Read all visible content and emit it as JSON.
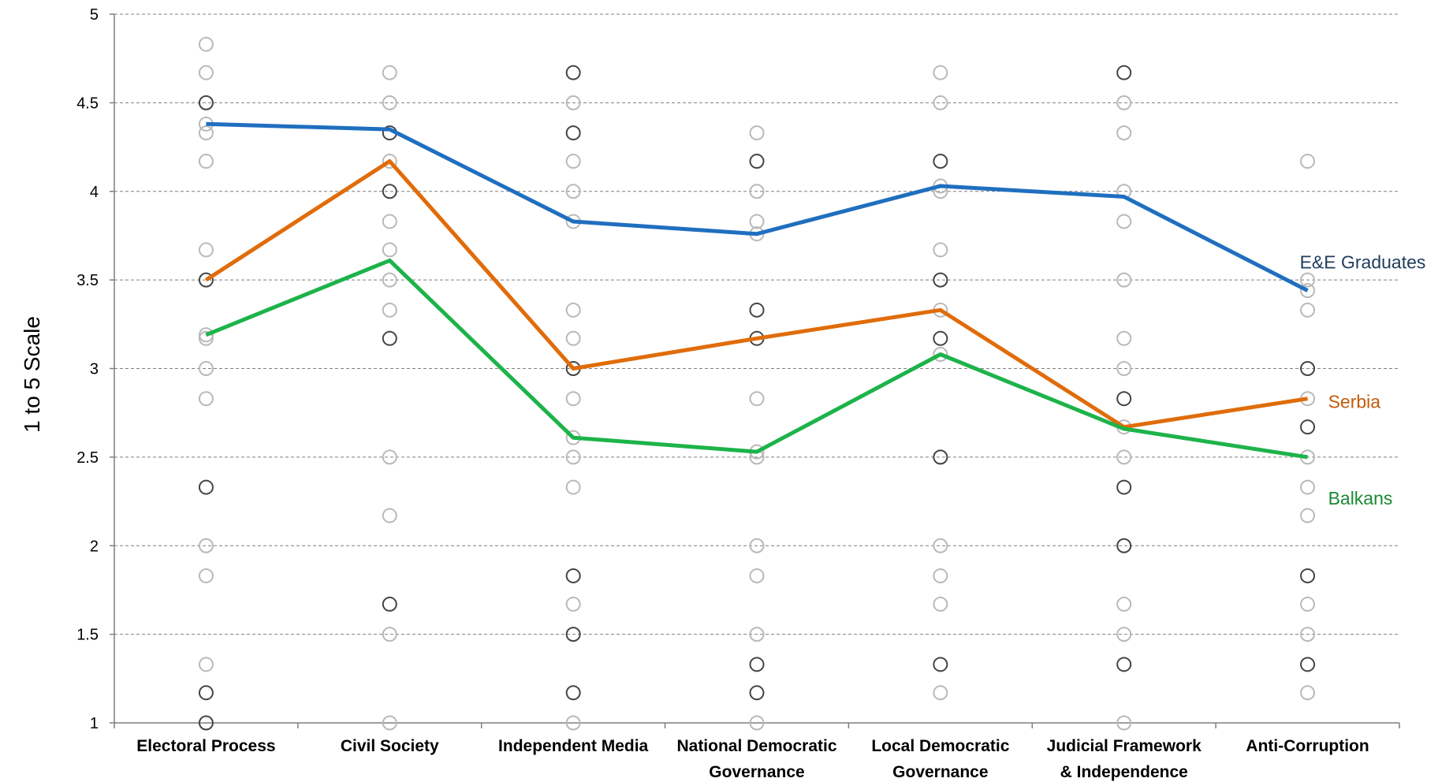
{
  "chart_data": {
    "type": "line",
    "title": "",
    "xlabel": "",
    "ylabel": "1 to 5 Scale",
    "ylim": [
      1,
      5
    ],
    "yticks": [
      "1",
      "1.5",
      "2",
      "2.5",
      "3",
      "3.5",
      "4",
      "4.5",
      "5"
    ],
    "grid": true,
    "categories": [
      [
        "Electoral Process"
      ],
      [
        "Civil Society"
      ],
      [
        "Independent Media"
      ],
      [
        "National Democratic",
        "Governance"
      ],
      [
        "Local Democratic",
        "Governance"
      ],
      [
        "Judicial Framework",
        "& Independence"
      ],
      [
        "Anti-Corruption"
      ]
    ],
    "series": [
      {
        "name": "E&E Graduates",
        "color": "#1f6fbf",
        "label_color": "#1f3d5c",
        "values": [
          4.38,
          4.35,
          3.83,
          3.76,
          4.03,
          3.97,
          3.44
        ]
      },
      {
        "name": "Serbia",
        "color": "#e06c0a",
        "label_color": "#c45a0c",
        "values": [
          3.5,
          4.17,
          3.0,
          3.17,
          3.33,
          2.67,
          2.83
        ]
      },
      {
        "name": "Balkans",
        "color": "#1db34a",
        "label_color": "#1a8a34",
        "values": [
          3.19,
          3.61,
          2.61,
          2.53,
          3.08,
          2.66,
          2.5
        ]
      }
    ],
    "country_points": [
      {
        "category": "Electoral Process",
        "dark": [
          4.5,
          3.5,
          2.33,
          1.17,
          1.0
        ],
        "light": [
          4.83,
          4.67,
          4.38,
          4.33,
          4.17,
          3.67,
          3.19,
          3.17,
          3.0,
          2.83,
          2.0,
          1.83,
          1.33
        ]
      },
      {
        "category": "Civil Society",
        "dark": [
          4.33,
          4.0,
          3.17,
          1.67
        ],
        "light": [
          4.67,
          4.5,
          4.17,
          3.83,
          3.67,
          3.5,
          3.33,
          2.5,
          2.17,
          1.5,
          1.0
        ]
      },
      {
        "category": "Independent Media",
        "dark": [
          4.67,
          4.33,
          3.0,
          1.83,
          1.5,
          1.17
        ],
        "light": [
          4.5,
          4.17,
          4.0,
          3.83,
          3.33,
          3.17,
          2.83,
          2.61,
          2.5,
          2.33,
          1.67,
          1.0
        ]
      },
      {
        "category": "National Democratic Governance",
        "dark": [
          4.17,
          3.33,
          3.17,
          1.33,
          1.17
        ],
        "light": [
          4.33,
          4.0,
          3.83,
          3.76,
          2.83,
          2.53,
          2.5,
          2.0,
          1.83,
          1.5,
          1.0
        ]
      },
      {
        "category": "Local Democratic Governance",
        "dark": [
          4.17,
          3.5,
          3.17,
          2.5,
          1.33
        ],
        "light": [
          4.67,
          4.5,
          4.03,
          4.0,
          3.67,
          3.33,
          3.08,
          2.0,
          1.83,
          1.67,
          1.17
        ]
      },
      {
        "category": "Judicial Framework & Independence",
        "dark": [
          4.67,
          2.83,
          2.33,
          2.0,
          1.33
        ],
        "light": [
          4.5,
          4.33,
          4.0,
          3.83,
          3.5,
          3.17,
          3.0,
          2.67,
          2.5,
          1.67,
          1.5,
          1.0
        ]
      },
      {
        "category": "Anti-Corruption",
        "dark": [
          3.0,
          2.67,
          1.83,
          1.33
        ],
        "light": [
          4.17,
          3.5,
          3.44,
          3.33,
          2.83,
          2.5,
          2.33,
          2.17,
          1.67,
          1.5,
          1.17
        ]
      }
    ]
  }
}
